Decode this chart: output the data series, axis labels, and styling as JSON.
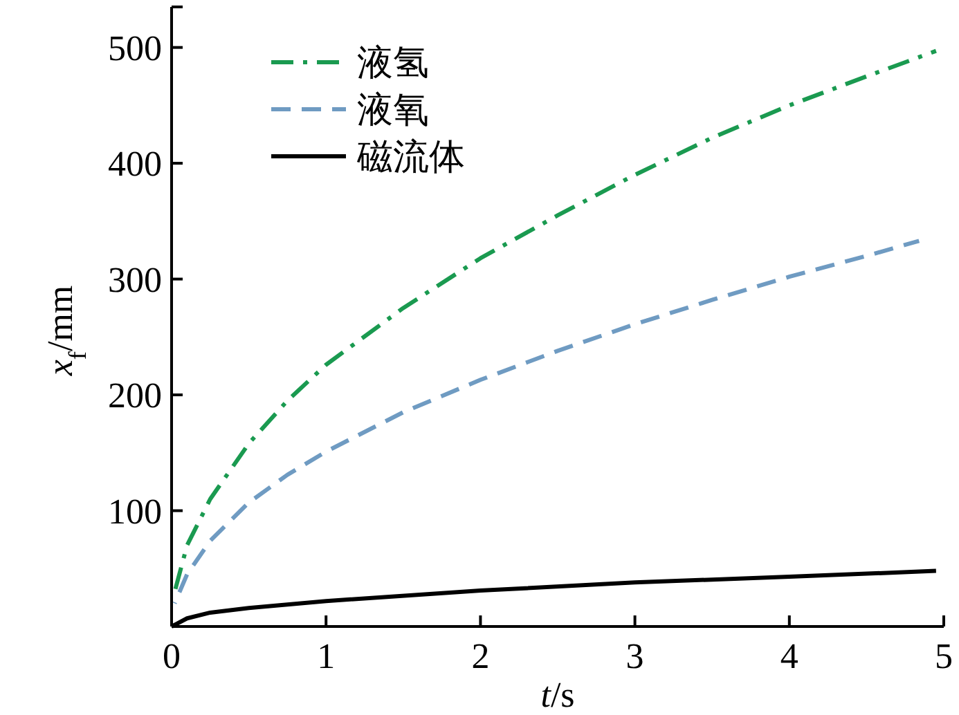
{
  "chart_data": {
    "type": "line",
    "xlabel": "*t*/s",
    "ylabel": "*x*$_{f}$/mm",
    "xlim": [
      0,
      5
    ],
    "ylim": [
      0,
      535
    ],
    "xticks": [
      0,
      1,
      2,
      3,
      4,
      5
    ],
    "yticks": [
      100,
      200,
      300,
      400,
      500
    ],
    "legend": "top left",
    "grid": false,
    "series": [
      {
        "name": "液氢",
        "color": "#1a9a50",
        "line_style": "dashdot",
        "x": [
          0.02,
          0.1,
          0.25,
          0.5,
          0.75,
          1,
          1.5,
          2,
          2.5,
          3,
          3.5,
          4,
          4.5,
          4.95
        ],
        "values": [
          30,
          70,
          110,
          158,
          195,
          226,
          275,
          318,
          355,
          390,
          422,
          450,
          475,
          497
        ]
      },
      {
        "name": "液氧",
        "color": "#6f9bc2",
        "line_style": "dashed",
        "x": [
          0.02,
          0.1,
          0.25,
          0.5,
          0.75,
          1,
          1.5,
          2,
          2.5,
          3,
          3.5,
          4,
          4.5,
          4.84
        ],
        "values": [
          20,
          45,
          74,
          107,
          131,
          151,
          185,
          213,
          238,
          261,
          282,
          302,
          320,
          333
        ]
      },
      {
        "name": "磁流体",
        "color": "#000000",
        "line_style": "solid",
        "x": [
          0,
          0.1,
          0.25,
          0.5,
          1,
          2,
          3,
          4,
          4.95
        ],
        "values": [
          0,
          7,
          12,
          16,
          22,
          31,
          38,
          43,
          48
        ]
      }
    ]
  }
}
